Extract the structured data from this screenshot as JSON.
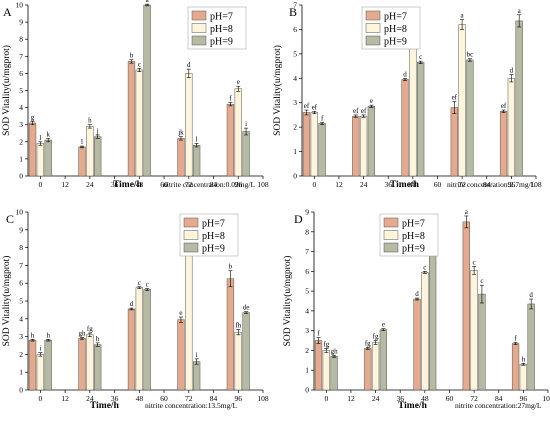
{
  "chart_data": [
    {
      "type": "bar",
      "panel": "A",
      "note": "nitrite concentration:0.02mg/L",
      "xlabel": "Time/h",
      "ylabel": "SOD Vitality(u/mgprot)",
      "xlim": [
        -6,
        108
      ],
      "xticks": [
        0,
        12,
        24,
        36,
        48,
        60,
        72,
        84,
        96,
        108
      ],
      "ylim": [
        0,
        10
      ],
      "yticks": [
        0,
        1,
        2,
        3,
        4,
        5,
        6,
        7,
        8,
        9,
        10
      ],
      "legend_position": "top-right",
      "colors": [
        "#E5A98E",
        "#FFF5DC",
        "#B5BAA3"
      ],
      "series": [
        {
          "name": "pH=7",
          "x": [
            0,
            24,
            48,
            72,
            96
          ],
          "values": [
            3.1,
            1.7,
            6.7,
            2.2,
            4.2
          ],
          "errors": [
            0.1,
            0.05,
            0.1,
            0.1,
            0.1
          ],
          "letters": [
            "g",
            "l",
            "b",
            "jk",
            "f"
          ]
        },
        {
          "name": "pH=8",
          "x": [
            0,
            24,
            48,
            72,
            96
          ],
          "values": [
            1.9,
            2.9,
            6.2,
            6.0,
            5.1
          ],
          "errors": [
            0.1,
            0.1,
            0.1,
            0.25,
            0.15
          ],
          "letters": [
            "l",
            "h",
            "c",
            "d",
            "e"
          ]
        },
        {
          "name": "pH=9",
          "x": [
            0,
            24,
            48,
            72,
            96
          ],
          "values": [
            2.1,
            2.3,
            10.0,
            1.8,
            2.6
          ],
          "errors": [
            0.1,
            0.1,
            0.05,
            0.1,
            0.2
          ],
          "letters": [
            "k",
            "j",
            "a",
            "l",
            "i"
          ]
        }
      ]
    },
    {
      "type": "bar",
      "panel": "B",
      "note": "nitrite concentration:2.7mg/L",
      "xlabel": "Time/h",
      "ylabel": "SOD Vitality(u/mgprot)",
      "xlim": [
        -6,
        108
      ],
      "xticks": [
        0,
        12,
        24,
        36,
        48,
        60,
        72,
        84,
        96,
        108
      ],
      "ylim": [
        0,
        7
      ],
      "yticks": [
        0,
        1,
        2,
        3,
        4,
        5,
        6,
        7
      ],
      "legend_position": "top-right",
      "colors": [
        "#E5A98E",
        "#FFF5DC",
        "#B5BAA3"
      ],
      "series": [
        {
          "name": "pH=7",
          "x": [
            0,
            24,
            48,
            72,
            96
          ],
          "values": [
            2.6,
            2.45,
            3.95,
            2.8,
            2.65
          ],
          "errors": [
            0.1,
            0.05,
            0.05,
            0.25,
            0.05
          ],
          "letters": [
            "ef",
            "ef",
            "d",
            "ef",
            "ef"
          ]
        },
        {
          "name": "pH=8",
          "x": [
            0,
            24,
            48,
            72,
            96
          ],
          "values": [
            2.6,
            2.45,
            5.45,
            6.2,
            4.0
          ],
          "errors": [
            0.05,
            0.05,
            0.05,
            0.2,
            0.15
          ],
          "letters": [
            "ef",
            "ef",
            "b",
            "a",
            "d"
          ]
        },
        {
          "name": "pH=9",
          "x": [
            0,
            24,
            48,
            72,
            96
          ],
          "values": [
            2.15,
            2.85,
            4.65,
            4.75,
            6.35
          ],
          "errors": [
            0.05,
            0.05,
            0.05,
            0.05,
            0.25
          ],
          "letters": [
            "f",
            "e",
            "c",
            "bc",
            "a"
          ]
        }
      ]
    },
    {
      "type": "bar",
      "panel": "C",
      "note": "nitrite concentration:13.5mg/L",
      "xlabel": "Time/h",
      "ylabel": "SOD Vitality(u/mgprot)",
      "xlim": [
        -6,
        108
      ],
      "xticks": [
        0,
        12,
        24,
        36,
        48,
        60,
        72,
        84,
        96,
        108
      ],
      "ylim": [
        0,
        10
      ],
      "yticks": [
        0,
        1,
        2,
        3,
        4,
        5,
        6,
        7,
        8,
        9,
        10
      ],
      "legend_position": "top-right",
      "colors": [
        "#E5A98E",
        "#FFF5DC",
        "#B5BAA3"
      ],
      "series": [
        {
          "name": "pH=7",
          "x": [
            0,
            24,
            48,
            72,
            96
          ],
          "values": [
            2.8,
            2.9,
            4.55,
            3.95,
            6.25
          ],
          "errors": [
            0.05,
            0.05,
            0.05,
            0.15,
            0.45
          ],
          "letters": [
            "h",
            "gh",
            "d",
            "e",
            "b"
          ]
        },
        {
          "name": "pH=8",
          "x": [
            0,
            24,
            48,
            72,
            96
          ],
          "values": [
            2.0,
            3.1,
            5.75,
            8.9,
            3.25
          ],
          "errors": [
            0.1,
            0.1,
            0.05,
            0.35,
            0.15
          ],
          "letters": [
            "i",
            "fg",
            "c",
            "a",
            "fh"
          ]
        },
        {
          "name": "pH=9",
          "x": [
            0,
            24,
            48,
            72,
            96
          ],
          "values": [
            2.8,
            2.55,
            5.65,
            1.6,
            4.35
          ],
          "errors": [
            0.05,
            0.1,
            0.05,
            0.15,
            0.05
          ],
          "letters": [
            "h",
            "h",
            "c",
            "i",
            "de"
          ]
        }
      ]
    },
    {
      "type": "bar",
      "panel": "D",
      "note": "nitrite concentration:27mg/L",
      "xlabel": "Time/h",
      "ylabel": "SOD Vitality(u/mgprot)",
      "xlim": [
        -6,
        108
      ],
      "xticks": [
        0,
        12,
        24,
        36,
        48,
        60,
        72,
        84,
        96,
        108
      ],
      "ylim": [
        0,
        9
      ],
      "yticks": [
        0,
        1,
        2,
        3,
        4,
        5,
        6,
        7,
        8,
        9
      ],
      "legend_position": "top-right",
      "colors": [
        "#E5A98E",
        "#FFF5DC",
        "#B5BAA3"
      ],
      "series": [
        {
          "name": "pH=7",
          "x": [
            0,
            24,
            48,
            72,
            96
          ],
          "values": [
            2.5,
            2.1,
            4.6,
            8.5,
            2.35
          ],
          "errors": [
            0.15,
            0.05,
            0.05,
            0.3,
            0.05
          ],
          "letters": [
            "f",
            "fg",
            "d",
            "a",
            "f"
          ]
        },
        {
          "name": "pH=8",
          "x": [
            0,
            24,
            48,
            72,
            96
          ],
          "values": [
            2.0,
            2.4,
            5.95,
            6.05,
            1.3
          ],
          "errors": [
            0.1,
            0.1,
            0.05,
            0.2,
            0.05
          ],
          "letters": [
            "fg",
            "fg",
            "c",
            "c",
            "h"
          ]
        },
        {
          "name": "pH=9",
          "x": [
            0,
            24,
            48,
            72,
            96
          ],
          "values": [
            1.7,
            3.05,
            8.1,
            4.85,
            4.35
          ],
          "errors": [
            0.05,
            0.05,
            0.05,
            0.45,
            0.25
          ],
          "letters": [
            "gh",
            "e",
            "b",
            "c",
            "d"
          ]
        }
      ]
    }
  ]
}
